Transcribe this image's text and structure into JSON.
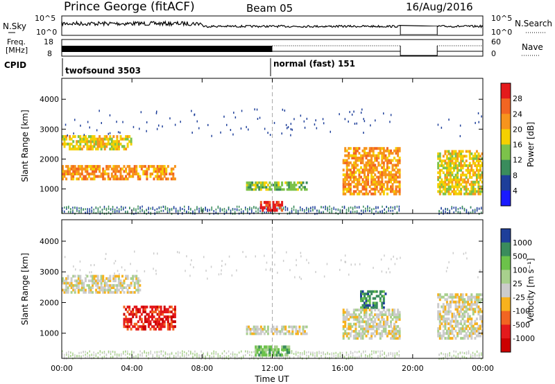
{
  "header": {
    "station": "Prince George (fitACF)",
    "beam": "Beam 05",
    "date": "16/Aug/2016"
  },
  "top_panels": {
    "nsky_label": "N.Sky",
    "nsky_ticks": [
      "10^5",
      "10^0"
    ],
    "nsearch_label": "N.Search",
    "nsearch_ticks": [
      "10^5",
      "10^0"
    ],
    "freq_label_1": "Freq.",
    "freq_label_2": "[MHz]",
    "freq_ticks": [
      "18",
      "8"
    ],
    "nave_label": "Nave",
    "nave_ticks": [
      "60",
      "0"
    ],
    "cpid_label": "CPID",
    "cpid_segments": [
      {
        "start_hour": 0,
        "text": "twofsound 3503"
      },
      {
        "start_hour": 12,
        "text": "normal (fast) 151"
      }
    ]
  },
  "chart_data": [
    {
      "type": "heatmap",
      "title": "",
      "xlabel": "",
      "ylabel": "Slant Range [km]",
      "xlim": [
        0,
        24
      ],
      "ylim": [
        180,
        4700
      ],
      "yticks": [
        "4000",
        "3000",
        "2000",
        "1000"
      ],
      "xticks": [
        "00:00",
        "04:00",
        "08:00",
        "12:00",
        "16:00",
        "20:00",
        "00:00"
      ],
      "data_gap_hours": [
        19.3,
        21.4
      ],
      "colorbar": {
        "label": "Power [dB]",
        "ticks": [
          "28",
          "24",
          "20",
          "16",
          "12",
          "8",
          "4"
        ],
        "colors": [
          "#e41a1c",
          "#f26522",
          "#f7941d",
          "#f5d000",
          "#7cc24a",
          "#3a8c5c",
          "#1e3f9a",
          "#1a1aff"
        ]
      },
      "echo_bands": [
        {
          "t0": 0.0,
          "t1": 6.5,
          "r0": 1300,
          "r1": 1800,
          "level": 5
        },
        {
          "t0": 0.0,
          "t1": 4.0,
          "r0": 2300,
          "r1": 2800,
          "level": 4
        },
        {
          "t0": 10.5,
          "t1": 14.0,
          "r0": 950,
          "r1": 1250,
          "level": 3
        },
        {
          "t0": 11.3,
          "t1": 12.6,
          "r0": 250,
          "r1": 600,
          "level": 7
        },
        {
          "t0": 16.0,
          "t1": 19.3,
          "r0": 800,
          "r1": 2400,
          "level": 5
        },
        {
          "t0": 21.4,
          "t1": 24.0,
          "r0": 800,
          "r1": 2300,
          "level": 4
        }
      ]
    },
    {
      "type": "heatmap",
      "title": "",
      "xlabel": "Time UT",
      "ylabel": "Slant Range [km]",
      "xlim": [
        0,
        24
      ],
      "ylim": [
        180,
        4700
      ],
      "yticks": [
        "4000",
        "3000",
        "2000",
        "1000"
      ],
      "xticks": [
        "00:00",
        "04:00",
        "08:00",
        "12:00",
        "16:00",
        "20:00",
        "00:00"
      ],
      "data_gap_hours": [
        19.3,
        21.4
      ],
      "colorbar": {
        "label": "Velocity [m s⁻¹]",
        "ticks": [
          "1000",
          "500",
          "100",
          "25",
          "-25",
          "-100",
          "-500",
          "-1000"
        ],
        "colors": [
          "#1e3f9a",
          "#3a8c5c",
          "#6cc24a",
          "#a8d08d",
          "#cccccc",
          "#f7b21d",
          "#f26522",
          "#e41a1c",
          "#cc0000"
        ]
      },
      "echo_bands": [
        {
          "t0": 0.0,
          "t1": 4.5,
          "r0": 2300,
          "r1": 2900,
          "level": 4
        },
        {
          "t0": 3.5,
          "t1": 6.5,
          "r0": 1100,
          "r1": 1900,
          "level": 7
        },
        {
          "t0": 10.5,
          "t1": 14.0,
          "r0": 950,
          "r1": 1250,
          "level": 4
        },
        {
          "t0": 11.0,
          "t1": 13.0,
          "r0": 250,
          "r1": 600,
          "level": 2
        },
        {
          "t0": 17.0,
          "t1": 18.5,
          "r0": 1800,
          "r1": 2400,
          "level": 1
        },
        {
          "t0": 16.0,
          "t1": 19.3,
          "r0": 800,
          "r1": 1800,
          "level": 4
        },
        {
          "t0": 21.4,
          "t1": 24.0,
          "r0": 800,
          "r1": 2300,
          "level": 4
        }
      ]
    }
  ]
}
